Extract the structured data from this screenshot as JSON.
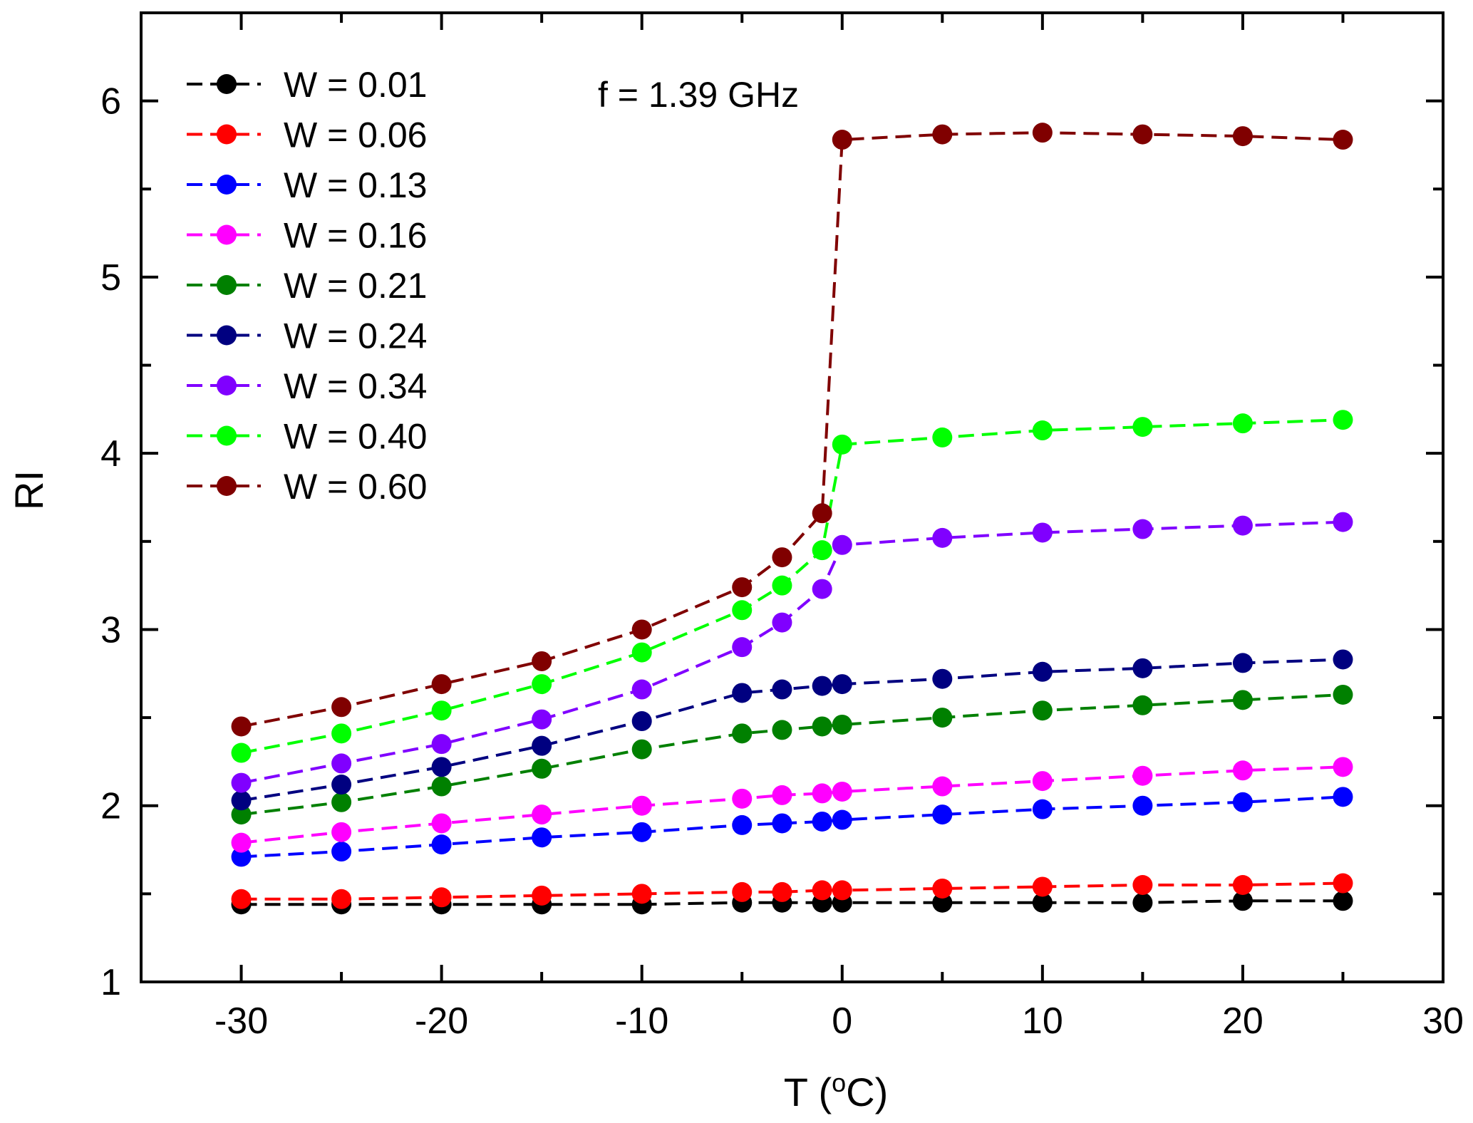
{
  "chart_data": {
    "type": "line",
    "title": "",
    "annotation": "f = 1.39 GHz",
    "xlabel": "T",
    "xlabel_unit_open": " (",
    "xlabel_unit_sup": "o",
    "xlabel_unit_close": "C)",
    "ylabel": "RI",
    "xlim": [
      -35,
      30
    ],
    "ylim": [
      1,
      6.5
    ],
    "xticks": [
      -30,
      -20,
      -10,
      0,
      10,
      20,
      30
    ],
    "yticks": [
      1,
      2,
      3,
      4,
      5,
      6
    ],
    "x": [
      -30,
      -25,
      -20,
      -15,
      -10,
      -5,
      -3,
      -1,
      0,
      5,
      10,
      15,
      20,
      25
    ],
    "legend_position": "top-left",
    "series": [
      {
        "name": "W = 0.01",
        "color": "#000000",
        "values": [
          1.44,
          1.44,
          1.44,
          1.44,
          1.44,
          1.45,
          1.45,
          1.45,
          1.45,
          1.45,
          1.45,
          1.45,
          1.46,
          1.46
        ]
      },
      {
        "name": "W = 0.06",
        "color": "#ff0000",
        "values": [
          1.47,
          1.47,
          1.48,
          1.49,
          1.5,
          1.51,
          1.51,
          1.52,
          1.52,
          1.53,
          1.54,
          1.55,
          1.55,
          1.56
        ]
      },
      {
        "name": "W = 0.13",
        "color": "#0000ff",
        "values": [
          1.71,
          1.74,
          1.78,
          1.82,
          1.85,
          1.89,
          1.9,
          1.91,
          1.92,
          1.95,
          1.98,
          2.0,
          2.02,
          2.05
        ]
      },
      {
        "name": "W = 0.16",
        "color": "#ff00ff",
        "values": [
          1.79,
          1.85,
          1.9,
          1.95,
          2.0,
          2.04,
          2.06,
          2.07,
          2.08,
          2.11,
          2.14,
          2.17,
          2.2,
          2.22
        ]
      },
      {
        "name": "W = 0.21",
        "color": "#008000",
        "values": [
          1.95,
          2.02,
          2.11,
          2.21,
          2.32,
          2.41,
          2.43,
          2.45,
          2.46,
          2.5,
          2.54,
          2.57,
          2.6,
          2.63
        ]
      },
      {
        "name": "W = 0.24",
        "color": "#000080",
        "values": [
          2.03,
          2.12,
          2.22,
          2.34,
          2.48,
          2.64,
          2.66,
          2.68,
          2.69,
          2.72,
          2.76,
          2.78,
          2.81,
          2.83
        ]
      },
      {
        "name": "W = 0.34",
        "color": "#8000ff",
        "values": [
          2.13,
          2.24,
          2.35,
          2.49,
          2.66,
          2.9,
          3.04,
          3.23,
          3.48,
          3.52,
          3.55,
          3.57,
          3.59,
          3.61
        ]
      },
      {
        "name": "W = 0.40",
        "color": "#00ff00",
        "values": [
          2.3,
          2.41,
          2.54,
          2.69,
          2.87,
          3.11,
          3.25,
          3.45,
          4.05,
          4.09,
          4.13,
          4.15,
          4.17,
          4.19
        ]
      },
      {
        "name": "W = 0.60",
        "color": "#800000",
        "values": [
          2.45,
          2.56,
          2.69,
          2.82,
          3.0,
          3.24,
          3.41,
          3.66,
          5.78,
          5.81,
          5.82,
          5.81,
          5.8,
          5.78
        ]
      }
    ]
  }
}
